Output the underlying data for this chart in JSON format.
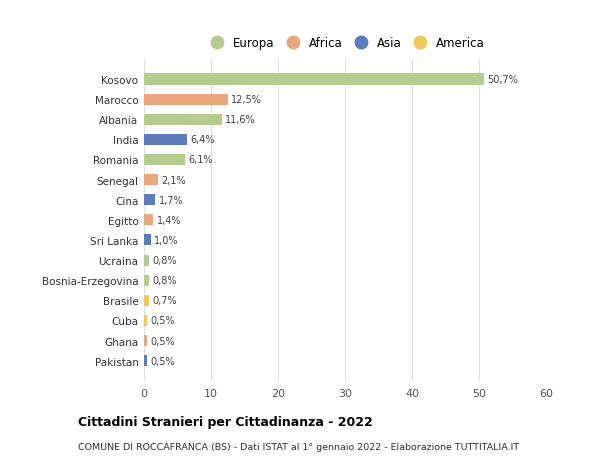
{
  "categories": [
    "Kosovo",
    "Marocco",
    "Albania",
    "India",
    "Romania",
    "Senegal",
    "Cina",
    "Egitto",
    "Sri Lanka",
    "Ucraina",
    "Bosnia-Erzegovina",
    "Brasile",
    "Cuba",
    "Ghana",
    "Pakistan"
  ],
  "values": [
    50.7,
    12.5,
    11.6,
    6.4,
    6.1,
    2.1,
    1.7,
    1.4,
    1.0,
    0.8,
    0.8,
    0.7,
    0.5,
    0.5,
    0.5
  ],
  "labels": [
    "50,7%",
    "12,5%",
    "11,6%",
    "6,4%",
    "6,1%",
    "2,1%",
    "1,7%",
    "1,4%",
    "1,0%",
    "0,8%",
    "0,8%",
    "0,7%",
    "0,5%",
    "0,5%",
    "0,5%"
  ],
  "continent": [
    "Europa",
    "Africa",
    "Europa",
    "Asia",
    "Europa",
    "Africa",
    "Asia",
    "Africa",
    "Asia",
    "Europa",
    "Europa",
    "America",
    "America",
    "Africa",
    "Asia"
  ],
  "colors": {
    "Europa": "#b5cc8e",
    "Africa": "#e8a87c",
    "Asia": "#5b7dbf",
    "America": "#f0c85a"
  },
  "legend_order": [
    "Europa",
    "Africa",
    "Asia",
    "America"
  ],
  "title": "Cittadini Stranieri per Cittadinanza - 2022",
  "subtitle": "COMUNE DI ROCCAFRANCA (BS) - Dati ISTAT al 1° gennaio 2022 - Elaborazione TUTTITALIA.IT",
  "xlim": [
    0,
    60
  ],
  "xticks": [
    0,
    10,
    20,
    30,
    40,
    50,
    60
  ],
  "background_color": "#ffffff",
  "grid_color": "#e0e0e0"
}
